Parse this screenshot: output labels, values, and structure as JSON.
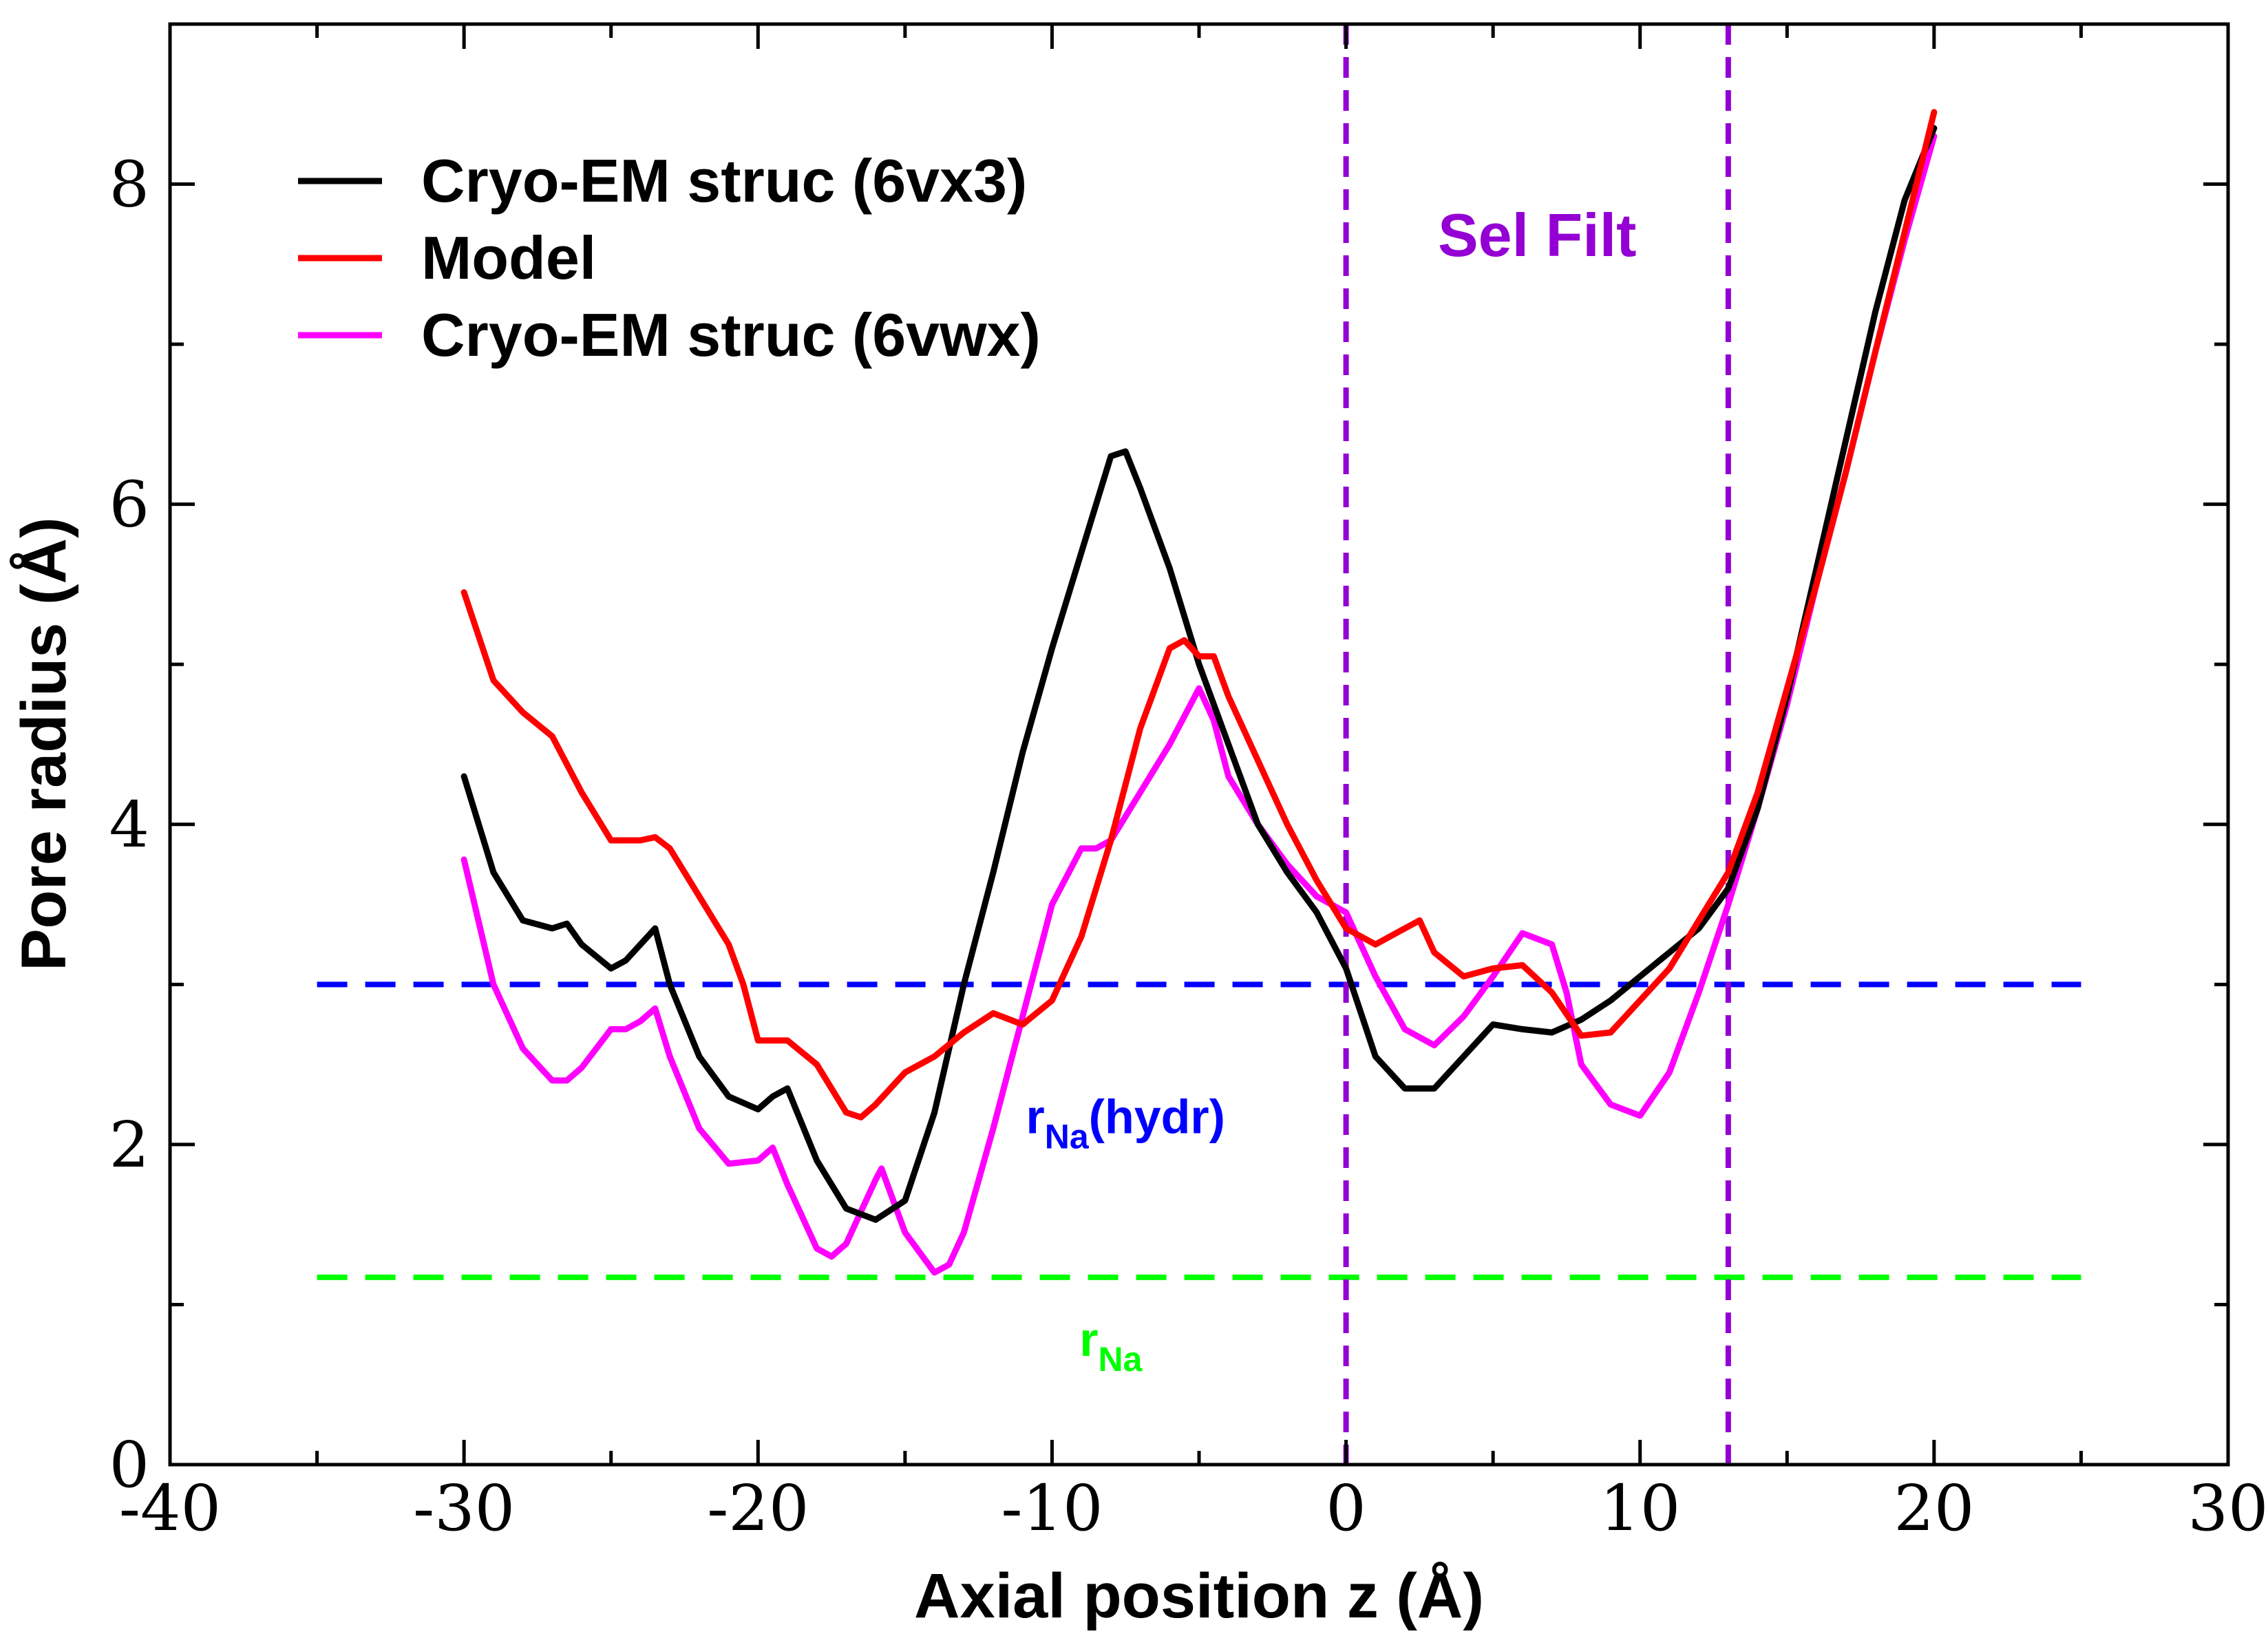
{
  "chart_data": {
    "type": "line",
    "title": "",
    "xlabel": "Axial position z  (Å)",
    "ylabel": "Pore radius  (Å)",
    "xlim": [
      -40,
      30
    ],
    "ylim": [
      0,
      9
    ],
    "xticks": [
      -40,
      -30,
      -20,
      -10,
      0,
      10,
      20,
      30
    ],
    "xtick_labels": [
      "-40",
      "-30",
      "-20",
      "-10",
      "0",
      "10",
      "20",
      "30"
    ],
    "yticks": [
      0,
      2,
      4,
      6,
      8
    ],
    "ytick_labels": [
      "0",
      "2",
      "4",
      "6",
      "8"
    ],
    "grid": false,
    "legend_position": "top-left",
    "series": [
      {
        "name": "Cryo-EM struc (6vx3)",
        "color": "#000000",
        "x": [
          -30,
          -29,
          -28,
          -27,
          -26.5,
          -26,
          -25,
          -24.5,
          -23.5,
          -23,
          -22,
          -21,
          -20,
          -19.5,
          -19,
          -18,
          -17,
          -16,
          -15,
          -14,
          -13,
          -12,
          -11,
          -10,
          -9,
          -8,
          -7.5,
          -7,
          -6,
          -5,
          -4,
          -3,
          -2,
          -1,
          0,
          1,
          2,
          3,
          4,
          5,
          6,
          7,
          8,
          9,
          10,
          11,
          12,
          13,
          14,
          15,
          16,
          17,
          18,
          19,
          20
        ],
        "values": [
          4.3,
          3.7,
          3.4,
          3.35,
          3.38,
          3.25,
          3.1,
          3.15,
          3.35,
          3.0,
          2.55,
          2.3,
          2.22,
          2.3,
          2.35,
          1.9,
          1.6,
          1.53,
          1.65,
          2.2,
          3.0,
          3.7,
          4.45,
          5.1,
          5.7,
          6.3,
          6.33,
          6.1,
          5.6,
          5.0,
          4.5,
          4.0,
          3.7,
          3.45,
          3.1,
          2.55,
          2.35,
          2.35,
          2.55,
          2.75,
          2.72,
          2.7,
          2.78,
          2.9,
          3.05,
          3.2,
          3.35,
          3.6,
          4.1,
          4.8,
          5.6,
          6.4,
          7.2,
          7.9,
          8.35
        ]
      },
      {
        "name": "Model",
        "color": "#ff0000",
        "x": [
          -30,
          -29,
          -28,
          -27,
          -26,
          -25,
          -24,
          -23.5,
          -23,
          -22,
          -21,
          -20.5,
          -20,
          -19,
          -18,
          -17,
          -16.5,
          -16,
          -15,
          -14,
          -13,
          -12,
          -11,
          -10,
          -9,
          -8,
          -7,
          -6,
          -5.5,
          -5,
          -4.5,
          -4,
          -3,
          -2,
          -1,
          0,
          1,
          2,
          2.5,
          3,
          4,
          5,
          6,
          7,
          8,
          9,
          10,
          11,
          12,
          13,
          14,
          15,
          16,
          17,
          18,
          19,
          20
        ],
        "values": [
          5.45,
          4.9,
          4.7,
          4.55,
          4.2,
          3.9,
          3.9,
          3.92,
          3.85,
          3.55,
          3.25,
          3.0,
          2.65,
          2.65,
          2.5,
          2.2,
          2.17,
          2.25,
          2.45,
          2.55,
          2.7,
          2.82,
          2.75,
          2.9,
          3.3,
          3.9,
          4.6,
          5.1,
          5.15,
          5.05,
          5.05,
          4.8,
          4.4,
          4.0,
          3.65,
          3.35,
          3.25,
          3.35,
          3.4,
          3.2,
          3.05,
          3.1,
          3.12,
          2.95,
          2.68,
          2.7,
          2.9,
          3.1,
          3.4,
          3.7,
          4.2,
          4.85,
          5.5,
          6.2,
          6.95,
          7.7,
          8.45
        ]
      },
      {
        "name": "Cryo-EM struc (6vwx)",
        "color": "#ff00ff",
        "x": [
          -30,
          -29,
          -28,
          -27,
          -26.5,
          -26,
          -25,
          -24.5,
          -24,
          -23.5,
          -23,
          -22,
          -21,
          -20,
          -19.5,
          -19,
          -18,
          -17.5,
          -17,
          -16,
          -15.8,
          -15.5,
          -15,
          -14,
          -13.5,
          -13,
          -12,
          -11,
          -10,
          -9,
          -8.5,
          -8,
          -7,
          -6,
          -5,
          -4.5,
          -4,
          -3,
          -2,
          -1,
          0,
          1,
          2,
          3,
          4,
          5,
          6,
          7,
          7.5,
          8,
          9,
          10,
          11,
          12,
          13,
          14,
          15,
          16,
          17,
          18,
          19,
          20
        ],
        "values": [
          3.78,
          3.0,
          2.6,
          2.4,
          2.4,
          2.48,
          2.72,
          2.72,
          2.77,
          2.85,
          2.55,
          2.1,
          1.88,
          1.9,
          1.98,
          1.75,
          1.35,
          1.3,
          1.38,
          1.78,
          1.85,
          1.7,
          1.45,
          1.2,
          1.25,
          1.45,
          2.1,
          2.8,
          3.5,
          3.85,
          3.85,
          3.9,
          4.2,
          4.5,
          4.85,
          4.65,
          4.3,
          4.0,
          3.75,
          3.55,
          3.45,
          3.05,
          2.72,
          2.62,
          2.8,
          3.05,
          3.32,
          3.25,
          2.95,
          2.5,
          2.25,
          2.18,
          2.45,
          2.95,
          3.5,
          4.1,
          4.75,
          5.5,
          6.2,
          6.95,
          7.65,
          8.3
        ]
      }
    ],
    "reference_lines": [
      {
        "orientation": "horizontal",
        "value": 3.0,
        "from": -35,
        "to": 25,
        "color": "#0000ff",
        "style": "dashed",
        "label_main": "r",
        "label_sub": "Na",
        "label_suffix": "(hydr)"
      },
      {
        "orientation": "horizontal",
        "value": 1.17,
        "from": -35,
        "to": 25,
        "color": "#00ff00",
        "style": "dashed",
        "label_main": "r",
        "label_sub": "Na",
        "label_suffix": ""
      },
      {
        "orientation": "vertical",
        "value": 0,
        "color": "#9400d3",
        "style": "dashed"
      },
      {
        "orientation": "vertical",
        "value": 13,
        "color": "#9400d3",
        "style": "dashed"
      }
    ],
    "annotations": [
      {
        "text": "Sel Filt",
        "color": "#9400d3",
        "x": 6.5,
        "y": 7.55
      }
    ]
  }
}
